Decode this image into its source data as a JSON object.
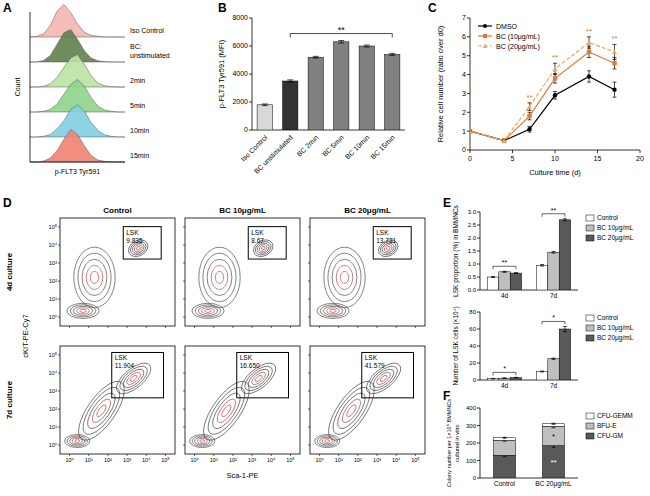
{
  "panel_labels": [
    "A",
    "B",
    "C",
    "D",
    "E",
    "F"
  ],
  "chart_data": [
    {
      "type": "density",
      "x_label": "p-FLT3 Tyr591",
      "y_label": "Count",
      "annotation": "BC:",
      "tick_labels": false,
      "x": [
        0,
        1,
        2,
        3,
        4,
        5,
        6,
        7,
        8,
        9,
        10,
        11,
        12,
        13,
        14
      ],
      "xlim": [
        0,
        14
      ],
      "ylim": [
        0,
        1
      ],
      "series": [
        {
          "name": "Iso Control",
          "color": "#f4b6b0",
          "values": [
            0,
            0.02,
            0.1,
            0.35,
            0.8,
            1,
            0.75,
            0.4,
            0.15,
            0.05,
            0.02,
            0,
            0,
            0,
            0
          ]
        },
        {
          "name": "unstimulated",
          "color": "#5e7f4c",
          "values": [
            0,
            0,
            0.05,
            0.2,
            0.55,
            0.9,
            1,
            0.7,
            0.35,
            0.12,
            0.04,
            0.01,
            0,
            0,
            0
          ]
        },
        {
          "name": "2min",
          "color": "#b9e3a2",
          "values": [
            0,
            0,
            0.02,
            0.1,
            0.3,
            0.6,
            0.9,
            1,
            0.7,
            0.35,
            0.12,
            0.04,
            0.01,
            0,
            0
          ]
        },
        {
          "name": "5min",
          "color": "#8fd48a",
          "values": [
            0,
            0,
            0.02,
            0.08,
            0.25,
            0.55,
            0.85,
            1,
            0.8,
            0.45,
            0.18,
            0.06,
            0.02,
            0,
            0
          ]
        },
        {
          "name": "10min",
          "color": "#7fcfe2",
          "values": [
            0,
            0,
            0.02,
            0.08,
            0.25,
            0.5,
            0.85,
            1,
            0.8,
            0.45,
            0.2,
            0.07,
            0.02,
            0,
            0
          ]
        },
        {
          "name": "15min",
          "color": "#f08272",
          "values": [
            0,
            0,
            0.03,
            0.12,
            0.35,
            0.7,
            1,
            0.85,
            0.5,
            0.2,
            0.06,
            0.02,
            0,
            0,
            0
          ]
        }
      ]
    },
    {
      "type": "bar",
      "y_label": "p-FLT3 Tyr591 (MFI)",
      "annotation": "**",
      "categories": [
        "Iso Control",
        "BC unstimulated",
        "BC 2min",
        "BC 5min",
        "BC 10min",
        "BC 15min"
      ],
      "values": [
        1800,
        3500,
        5200,
        6300,
        6000,
        5400
      ],
      "errors": [
        60,
        80,
        60,
        90,
        70,
        70
      ],
      "colors": [
        "#d9d9d9",
        "#333333",
        "#808080",
        "#808080",
        "#808080",
        "#808080"
      ],
      "ylim": [
        0,
        8000
      ],
      "yticks": [
        0,
        2000,
        4000,
        6000,
        8000
      ]
    },
    {
      "type": "line",
      "x_label": "Culture time (d)",
      "y_label": "Relative cell number (ratio over d0)",
      "x": [
        0,
        4,
        7,
        10,
        14,
        17
      ],
      "xlim": [
        0,
        20
      ],
      "xticks": [
        0,
        5,
        10,
        15,
        20
      ],
      "ylim": [
        0,
        7
      ],
      "yticks": [
        0,
        1,
        2,
        3,
        4,
        5,
        6,
        7
      ],
      "legend": "top-left",
      "significance": [
        null,
        null,
        "**",
        "**",
        "**",
        "**"
      ],
      "series": [
        {
          "name": "DMSO",
          "color": "#000000",
          "marker": "circle",
          "line_style": "solid",
          "values": [
            1,
            0.5,
            1.1,
            2.9,
            3.9,
            3.2
          ],
          "errors": [
            0,
            0.05,
            0.15,
            0.2,
            0.3,
            0.4
          ]
        },
        {
          "name": "BC (10μg/mL)",
          "color": "#e07b39",
          "marker": "square",
          "line_style": "solid",
          "values": [
            1,
            0.5,
            1.8,
            3.8,
            5.2,
            4.6
          ],
          "errors": [
            0,
            0.05,
            0.2,
            0.25,
            0.3,
            0.3
          ]
        },
        {
          "name": "BC (20μg/mL)",
          "color": "#f4a460",
          "marker": "triangle",
          "line_style": "dashed",
          "values": [
            1,
            0.5,
            2.3,
            4.3,
            5.7,
            5.2
          ],
          "errors": [
            0,
            0.05,
            0.2,
            0.3,
            0.3,
            0.4
          ]
        }
      ]
    },
    {
      "type": "bar",
      "y_label": "LSK proportion (%) in BMMNCs",
      "categories": [
        "4d",
        "7d"
      ],
      "legend": "right",
      "ylim": [
        0,
        3
      ],
      "yticks": [
        {
          "value": 0,
          "label": "0.0"
        },
        {
          "value": 0.5,
          "label": "0.5"
        },
        {
          "value": 1,
          "label": "1.0"
        },
        {
          "value": 1.5,
          "label": "1.5"
        },
        {
          "value": 2,
          "label": "2.0"
        },
        {
          "value": 2.5,
          "label": "2.5"
        },
        {
          "value": 3,
          "label": "3.0"
        }
      ],
      "significance": [
        "**",
        "**"
      ],
      "series": [
        {
          "name": "Control",
          "color": "#ffffff",
          "values": [
            0.5,
            0.95
          ],
          "errors": [
            0.02,
            0.03
          ]
        },
        {
          "name": "BC 10μg/mL",
          "color": "#bfbfbf",
          "values": [
            0.7,
            1.45
          ],
          "errors": [
            0.02,
            0.03
          ]
        },
        {
          "name": "BC 20μg/mL",
          "color": "#595959",
          "values": [
            0.65,
            2.7
          ],
          "errors": [
            0.02,
            0.04
          ]
        }
      ]
    },
    {
      "type": "bar",
      "y_label": "Number of LSK cells (×10⁴)",
      "categories": [
        "4d",
        "7d"
      ],
      "legend": "right",
      "ylim": [
        0,
        80
      ],
      "yticks": [
        0,
        20,
        40,
        60,
        80
      ],
      "significance": [
        "*",
        "*"
      ],
      "series": [
        {
          "name": "Control",
          "color": "#ffffff",
          "values": [
            1.5,
            10
          ],
          "errors": [
            0.3,
            0.5
          ]
        },
        {
          "name": "BC 10μg/mL",
          "color": "#bfbfbf",
          "values": [
            2.2,
            25
          ],
          "errors": [
            0.3,
            0.8
          ]
        },
        {
          "name": "BC 20μg/mL",
          "color": "#595959",
          "values": [
            2.8,
            60
          ],
          "errors": [
            0.3,
            3
          ]
        }
      ]
    },
    {
      "type": "bar",
      "stacked": true,
      "legend": "right",
      "y_label": [
        "Colony number per 1×10⁵ BMMNCs",
        "cultured in vitro"
      ],
      "categories": [
        "Control",
        "BC 20μg/mL"
      ],
      "ylim": [
        0,
        400
      ],
      "yticks": [
        0,
        100,
        200,
        300,
        400
      ],
      "series": [
        {
          "name": "CFU-GM",
          "color": "#595959",
          "values": [
            130,
            185
          ],
          "errors": [
            8,
            10
          ],
          "significance": [
            null,
            "**"
          ]
        },
        {
          "name": "BFU-E",
          "color": "#bfbfbf",
          "values": [
            85,
            110
          ],
          "errors": [
            5,
            8
          ],
          "significance": [
            null,
            "*"
          ]
        },
        {
          "name": "CFU-GEMM",
          "color": "#ffffff",
          "values": [
            15,
            15
          ],
          "errors": [
            3,
            3
          ]
        }
      ]
    }
  ],
  "panel_d": {
    "columns": [
      "Control",
      "BC 10μg/mL",
      "BC 20μg/mL"
    ],
    "rows": [
      "4d culture",
      "7d culture"
    ],
    "x_label": "Sca-1-PE",
    "y_label": "cKIT-PE-Cy7",
    "gate_label": "LSK",
    "axis_ticks": [
      "10⁰",
      "10¹",
      "10²",
      "10³",
      "10⁴",
      "10⁵"
    ],
    "gates": [
      [
        "9.835",
        "8.67",
        "13.731"
      ],
      [
        "11.904",
        "16.650",
        "41.579"
      ]
    ]
  }
}
